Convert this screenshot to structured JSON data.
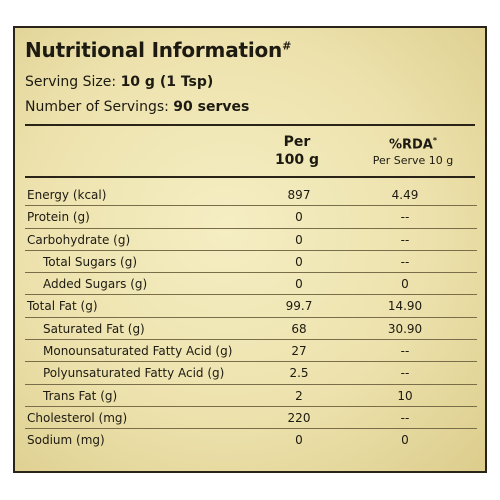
{
  "panel": {
    "title": "Nutritional Information",
    "title_mark": "#",
    "serving_size_label": "Serving Size:",
    "serving_size_value": "10 g (1 Tsp)",
    "servings_label": "Number of Servings:",
    "servings_value": "90 serves"
  },
  "columns": {
    "per_line1": "Per",
    "per_line2": "100 g",
    "rda_line1": "%RDA",
    "rda_mark": "*",
    "rda_line2": "Per Serve 10 g"
  },
  "rows": [
    {
      "name": "Energy (kcal)",
      "per": "897",
      "rda": "4.49",
      "indent": 0
    },
    {
      "name": "Protein (g)",
      "per": "0",
      "rda": "--",
      "indent": 0
    },
    {
      "name": "Carbohydrate (g)",
      "per": "0",
      "rda": "--",
      "indent": 0
    },
    {
      "name": "Total Sugars (g)",
      "per": "0",
      "rda": "--",
      "indent": 1
    },
    {
      "name": "Added Sugars (g)",
      "per": "0",
      "rda": "0",
      "indent": 1
    },
    {
      "name": "Total Fat (g)",
      "per": "99.7",
      "rda": "14.90",
      "indent": 0
    },
    {
      "name": "Saturated Fat (g)",
      "per": "68",
      "rda": "30.90",
      "indent": 1
    },
    {
      "name": "Monounsaturated Fatty Acid (g)",
      "per": "27",
      "rda": "--",
      "indent": 1
    },
    {
      "name": "Polyunsaturated Fatty Acid (g)",
      "per": "2.5",
      "rda": "--",
      "indent": 1
    },
    {
      "name": "Trans Fat (g)",
      "per": "2",
      "rda": "10",
      "indent": 1
    },
    {
      "name": "Cholesterol (mg)",
      "per": "220",
      "rda": "--",
      "indent": 0
    },
    {
      "name": "Sodium (mg)",
      "per": "0",
      "rda": "0",
      "indent": 0
    }
  ]
}
